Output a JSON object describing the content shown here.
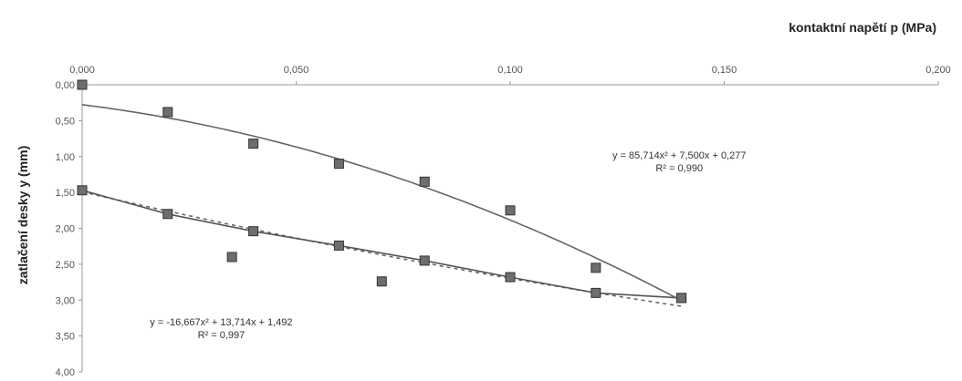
{
  "chart_data": {
    "type": "scatter",
    "title": "",
    "xlabel": "kontaktní napětí p (MPa)",
    "ylabel": "zatlačení desky y (mm)",
    "xlim": [
      0,
      0.2
    ],
    "ylim": [
      0,
      4
    ],
    "y_inverted": true,
    "x_axis_position": "top",
    "grid": false,
    "legend": "none",
    "x_ticks": [
      "0,000",
      "0,050",
      "0,100",
      "0,150",
      "0,200"
    ],
    "y_ticks": [
      "0,00",
      "0,50",
      "1,00",
      "1,50",
      "2,00",
      "2,50",
      "3,00",
      "3,50",
      "4,00"
    ],
    "series": [
      {
        "style": "markers",
        "points": [
          [
            0.0,
            0.0
          ],
          [
            0.02,
            0.38
          ],
          [
            0.04,
            0.82
          ],
          [
            0.06,
            1.1
          ],
          [
            0.08,
            1.35
          ],
          [
            0.1,
            1.75
          ],
          [
            0.12,
            2.55
          ],
          [
            0.14,
            2.97
          ]
        ]
      },
      {
        "style": "markers+line",
        "points": [
          [
            0.0,
            1.47
          ],
          [
            0.02,
            1.8
          ],
          [
            0.04,
            2.04
          ],
          [
            0.06,
            2.24
          ],
          [
            0.08,
            2.45
          ],
          [
            0.1,
            2.68
          ],
          [
            0.12,
            2.9
          ],
          [
            0.14,
            2.97
          ]
        ]
      },
      {
        "style": "markers",
        "points": [
          [
            0.035,
            2.4
          ],
          [
            0.07,
            2.74
          ]
        ]
      }
    ],
    "trendlines": [
      {
        "type": "polynomial",
        "coefficients": [
          85.714,
          7.5,
          0.277
        ],
        "range": [
          0,
          0.14
        ],
        "style": "solid"
      },
      {
        "type": "polynomial",
        "coefficients": [
          -16.667,
          13.714,
          1.492
        ],
        "range": [
          0,
          0.14
        ],
        "style": "dashed"
      }
    ],
    "annotations": [
      {
        "equation": "y = 85,714x² + 7,500x + 0,277",
        "r2": "R² = 0,990",
        "at": [
          0.1395,
          1.03
        ]
      },
      {
        "equation": "y = -16,667x² + 13,714x + 1,492",
        "r2": "R² = 0,997",
        "at": [
          0.0325,
          3.35
        ]
      }
    ]
  }
}
